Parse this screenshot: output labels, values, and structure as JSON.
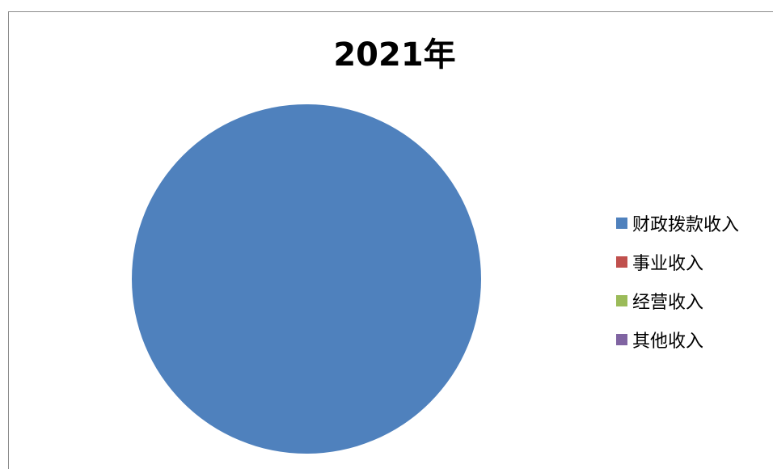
{
  "chart_data": {
    "type": "pie",
    "title": "2021年",
    "categories": [
      "财政拨款收入",
      "事业收入",
      "经营收入",
      "其他收入"
    ],
    "values": [
      100,
      0,
      0,
      0
    ],
    "colors": [
      "#4F81BD",
      "#C0504D",
      "#9BBB59",
      "#8064A2"
    ],
    "legend_position": "right"
  }
}
